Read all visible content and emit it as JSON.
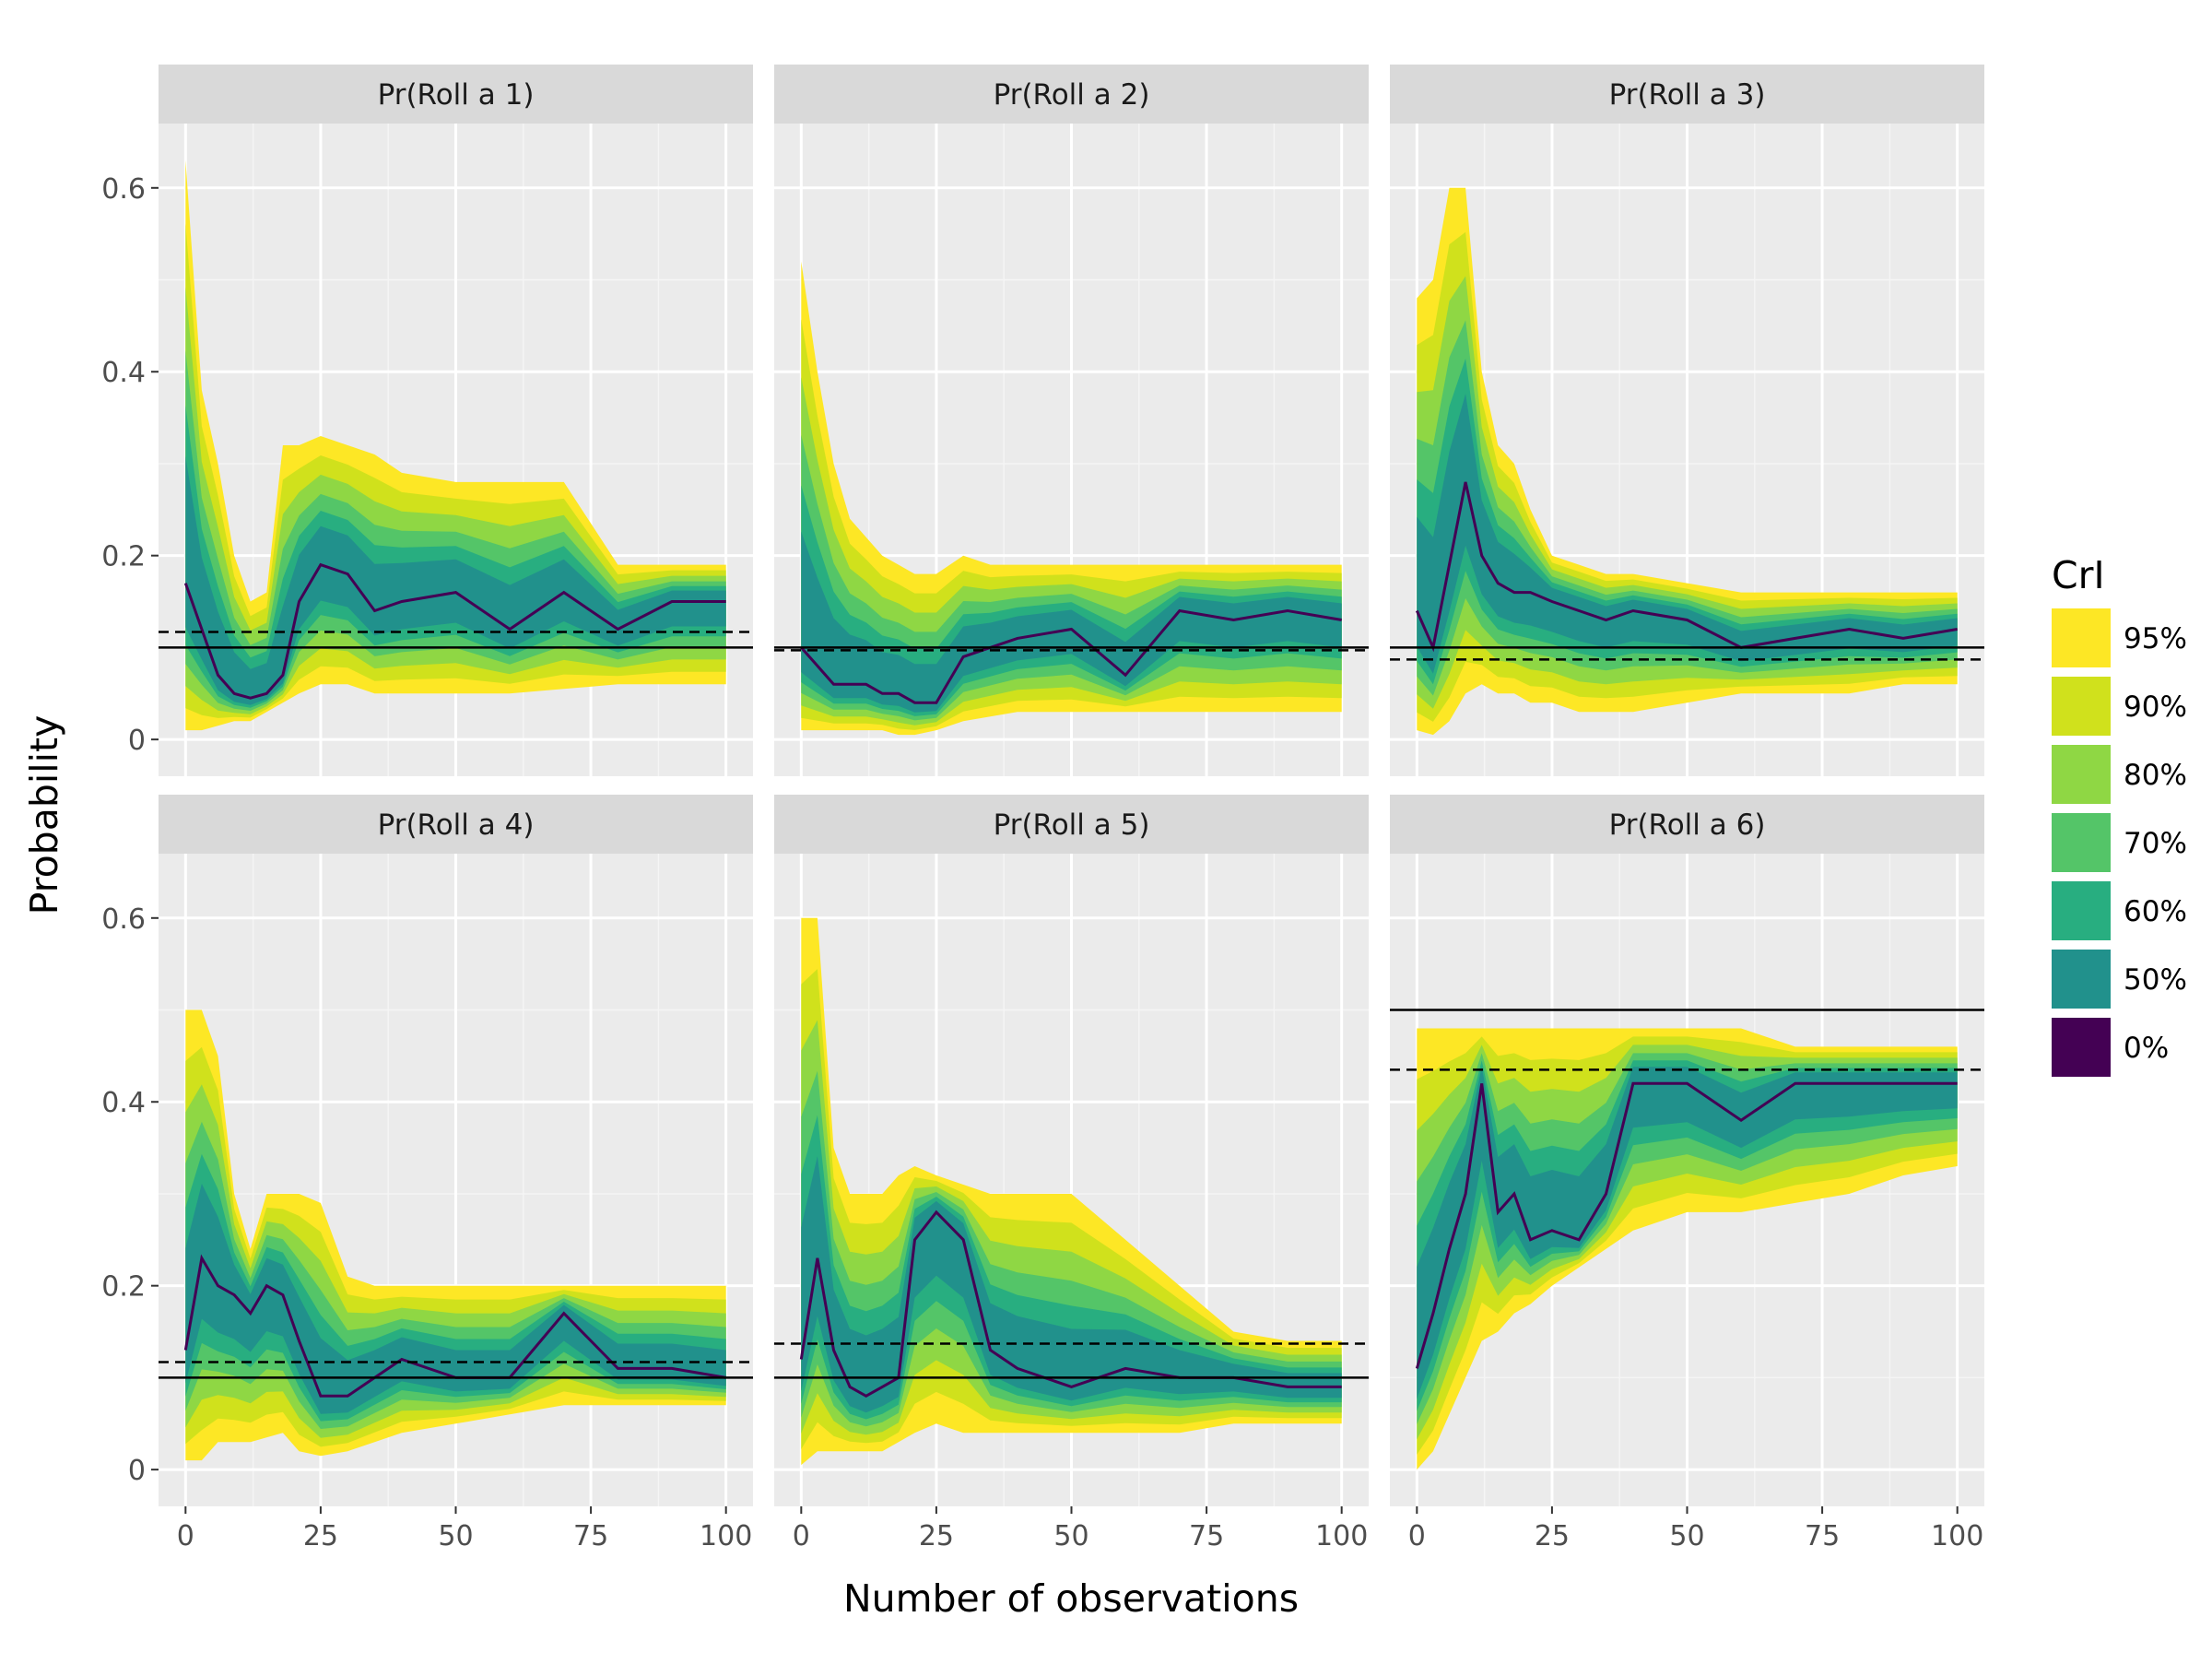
{
  "chart_data": {
    "type": "area",
    "xlabel": "Number of observations",
    "ylabel": "Probability",
    "xlim": [
      -5,
      105
    ],
    "ylim": [
      -0.04,
      0.67
    ],
    "x_ticks": [
      0,
      25,
      50,
      75,
      100
    ],
    "y_ticks": [
      0,
      0.2,
      0.4,
      0.6
    ],
    "x_tick_labels": [
      "0",
      "25",
      "50",
      "75",
      "100"
    ],
    "y_tick_labels": [
      "0",
      "0.2",
      "0.4",
      "0.6"
    ],
    "grid": true,
    "legend": {
      "title": "CrI",
      "placement": "right",
      "entries": [
        {
          "label": "95%",
          "color": "#fde725"
        },
        {
          "label": "90%",
          "color": "#d0e11c"
        },
        {
          "label": "80%",
          "color": "#8fd744"
        },
        {
          "label": "70%",
          "color": "#54c568"
        },
        {
          "label": "60%",
          "color": "#28ae80"
        },
        {
          "label": "50%",
          "color": "#21918c"
        },
        {
          "label": "0%",
          "color": "#440154"
        }
      ]
    },
    "panels": [
      {
        "title": "Pr(Roll a 1)",
        "true_value": 0.1,
        "estimate_line": 0.117,
        "x": [
          0,
          3,
          6,
          9,
          12,
          15,
          18,
          21,
          25,
          30,
          35,
          40,
          50,
          60,
          70,
          80,
          90,
          100
        ],
        "median": [
          0.17,
          0.12,
          0.07,
          0.05,
          0.045,
          0.05,
          0.07,
          0.15,
          0.19,
          0.18,
          0.14,
          0.15,
          0.16,
          0.12,
          0.16,
          0.12,
          0.15,
          0.15
        ],
        "lower95": [
          0.01,
          0.01,
          0.015,
          0.02,
          0.02,
          0.03,
          0.04,
          0.05,
          0.06,
          0.06,
          0.05,
          0.05,
          0.05,
          0.05,
          0.055,
          0.06,
          0.06,
          0.06
        ],
        "upper95": [
          0.63,
          0.38,
          0.3,
          0.2,
          0.15,
          0.16,
          0.32,
          0.32,
          0.33,
          0.32,
          0.31,
          0.29,
          0.28,
          0.28,
          0.28,
          0.19,
          0.19,
          0.19
        ]
      },
      {
        "title": "Pr(Roll a 2)",
        "true_value": 0.1,
        "estimate_line": 0.097,
        "x": [
          0,
          3,
          6,
          9,
          12,
          15,
          18,
          21,
          25,
          30,
          35,
          40,
          50,
          60,
          70,
          80,
          90,
          100
        ],
        "median": [
          0.1,
          0.08,
          0.06,
          0.06,
          0.06,
          0.05,
          0.05,
          0.04,
          0.04,
          0.09,
          0.1,
          0.11,
          0.12,
          0.07,
          0.14,
          0.13,
          0.14,
          0.13
        ],
        "lower95": [
          0.01,
          0.01,
          0.01,
          0.01,
          0.01,
          0.01,
          0.005,
          0.005,
          0.01,
          0.02,
          0.025,
          0.03,
          0.03,
          0.03,
          0.03,
          0.03,
          0.03,
          0.03
        ],
        "upper95": [
          0.52,
          0.4,
          0.3,
          0.24,
          0.22,
          0.2,
          0.19,
          0.18,
          0.18,
          0.2,
          0.19,
          0.19,
          0.19,
          0.19,
          0.19,
          0.19,
          0.19,
          0.19
        ]
      },
      {
        "title": "Pr(Roll a 3)",
        "true_value": 0.1,
        "estimate_line": 0.087,
        "x": [
          0,
          3,
          6,
          9,
          12,
          15,
          18,
          21,
          25,
          30,
          35,
          40,
          50,
          60,
          70,
          80,
          90,
          100
        ],
        "median": [
          0.14,
          0.1,
          0.19,
          0.28,
          0.2,
          0.17,
          0.16,
          0.16,
          0.15,
          0.14,
          0.13,
          0.14,
          0.13,
          0.1,
          0.11,
          0.12,
          0.11,
          0.12
        ],
        "lower95": [
          0.01,
          0.005,
          0.02,
          0.05,
          0.06,
          0.05,
          0.05,
          0.04,
          0.04,
          0.03,
          0.03,
          0.03,
          0.04,
          0.05,
          0.05,
          0.05,
          0.06,
          0.06
        ],
        "upper95": [
          0.48,
          0.5,
          0.6,
          0.6,
          0.4,
          0.32,
          0.3,
          0.25,
          0.2,
          0.19,
          0.18,
          0.18,
          0.17,
          0.16,
          0.16,
          0.16,
          0.16,
          0.16
        ]
      },
      {
        "title": "Pr(Roll a 4)",
        "true_value": 0.1,
        "estimate_line": 0.117,
        "x": [
          0,
          3,
          6,
          9,
          12,
          15,
          18,
          21,
          25,
          30,
          35,
          40,
          50,
          60,
          70,
          80,
          90,
          100
        ],
        "median": [
          0.13,
          0.23,
          0.2,
          0.19,
          0.17,
          0.2,
          0.19,
          0.14,
          0.08,
          0.08,
          0.1,
          0.12,
          0.1,
          0.1,
          0.17,
          0.11,
          0.11,
          0.1
        ],
        "lower95": [
          0.01,
          0.01,
          0.03,
          0.03,
          0.03,
          0.035,
          0.04,
          0.02,
          0.015,
          0.02,
          0.03,
          0.04,
          0.05,
          0.06,
          0.07,
          0.07,
          0.07,
          0.07
        ],
        "upper95": [
          0.5,
          0.5,
          0.45,
          0.3,
          0.24,
          0.3,
          0.3,
          0.3,
          0.29,
          0.21,
          0.2,
          0.2,
          0.2,
          0.2,
          0.2,
          0.2,
          0.2,
          0.2
        ]
      },
      {
        "title": "Pr(Roll a 5)",
        "true_value": 0.1,
        "estimate_line": 0.137,
        "x": [
          0,
          3,
          6,
          9,
          12,
          15,
          18,
          21,
          25,
          30,
          35,
          40,
          50,
          60,
          70,
          80,
          90,
          100
        ],
        "median": [
          0.12,
          0.23,
          0.13,
          0.09,
          0.08,
          0.09,
          0.1,
          0.25,
          0.28,
          0.25,
          0.13,
          0.11,
          0.09,
          0.11,
          0.1,
          0.1,
          0.09,
          0.09
        ],
        "lower95": [
          0.005,
          0.02,
          0.02,
          0.02,
          0.02,
          0.02,
          0.03,
          0.04,
          0.05,
          0.04,
          0.04,
          0.04,
          0.04,
          0.04,
          0.04,
          0.05,
          0.05,
          0.05
        ],
        "upper95": [
          0.6,
          0.6,
          0.35,
          0.3,
          0.3,
          0.3,
          0.32,
          0.33,
          0.32,
          0.31,
          0.3,
          0.3,
          0.3,
          0.25,
          0.2,
          0.15,
          0.14,
          0.14
        ]
      },
      {
        "title": "Pr(Roll a 6)",
        "true_value": 0.5,
        "estimate_line": 0.435,
        "x": [
          0,
          3,
          6,
          9,
          12,
          15,
          18,
          21,
          25,
          30,
          35,
          40,
          50,
          60,
          70,
          80,
          90,
          100
        ],
        "median": [
          0.11,
          0.17,
          0.24,
          0.3,
          0.42,
          0.28,
          0.3,
          0.25,
          0.26,
          0.25,
          0.3,
          0.42,
          0.42,
          0.38,
          0.42,
          0.42,
          0.42,
          0.42
        ],
        "lower95": [
          0.0,
          0.02,
          0.06,
          0.1,
          0.14,
          0.15,
          0.17,
          0.18,
          0.2,
          0.22,
          0.24,
          0.26,
          0.28,
          0.28,
          0.29,
          0.3,
          0.32,
          0.33
        ],
        "upper95": [
          0.48,
          0.48,
          0.48,
          0.48,
          0.48,
          0.48,
          0.48,
          0.48,
          0.48,
          0.48,
          0.48,
          0.48,
          0.48,
          0.48,
          0.46,
          0.46,
          0.46,
          0.46
        ]
      }
    ]
  }
}
